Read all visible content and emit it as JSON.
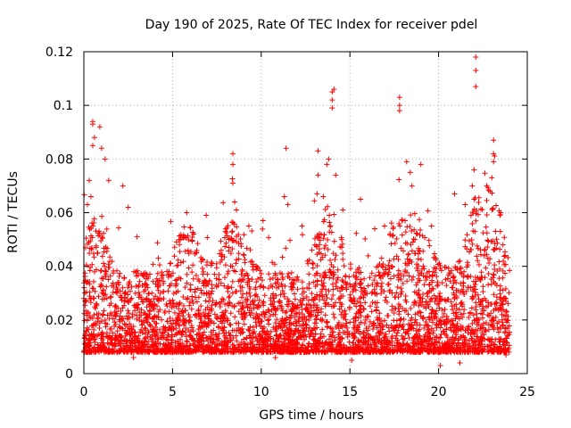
{
  "chart_data": {
    "type": "scatter",
    "title": "Day 190 of 2025, Rate Of TEC Index for receiver pdel",
    "xlabel": "GPS time / hours",
    "ylabel": "ROTI / TECUs",
    "xlim": [
      0,
      25
    ],
    "ylim": [
      0,
      0.12
    ],
    "x_ticks": [
      0,
      5,
      10,
      15,
      20,
      25
    ],
    "x_tick_labels": [
      "0",
      "5",
      "10",
      "15",
      "20",
      "25"
    ],
    "y_ticks": [
      0,
      0.02,
      0.04,
      0.06,
      0.08,
      0.1,
      0.12
    ],
    "y_tick_labels": [
      "0",
      "0.02",
      "0.04",
      "0.06",
      "0.08",
      "0.1",
      "0.12"
    ],
    "grid": true,
    "marker": "plus",
    "color": "#ff0000",
    "series": [
      {
        "points": [
          [
            0.2,
            0.063
          ],
          [
            0.3,
            0.072
          ],
          [
            0.5,
            0.093
          ],
          [
            0.5,
            0.094
          ],
          [
            0.5,
            0.085
          ],
          [
            0.6,
            0.088
          ],
          [
            0.9,
            0.092
          ],
          [
            1.0,
            0.084
          ],
          [
            1.2,
            0.08
          ],
          [
            0.4,
            0.066
          ],
          [
            1.4,
            0.072
          ],
          [
            2.2,
            0.07
          ],
          [
            2.5,
            0.062
          ],
          [
            8.4,
            0.082
          ],
          [
            8.4,
            0.078
          ],
          [
            8.4,
            0.071
          ],
          [
            8.5,
            0.064
          ],
          [
            8.6,
            0.061
          ],
          [
            11.4,
            0.084
          ],
          [
            11.3,
            0.066
          ],
          [
            11.5,
            0.063
          ],
          [
            13.2,
            0.083
          ],
          [
            13.2,
            0.074
          ],
          [
            13.5,
            0.066
          ],
          [
            13.7,
            0.078
          ],
          [
            14.0,
            0.105
          ],
          [
            14.1,
            0.106
          ],
          [
            14.0,
            0.102
          ],
          [
            14.0,
            0.099
          ],
          [
            13.8,
            0.08
          ],
          [
            14.2,
            0.074
          ],
          [
            15.6,
            0.065
          ],
          [
            17.8,
            0.103
          ],
          [
            17.8,
            0.1
          ],
          [
            17.8,
            0.098
          ],
          [
            18.2,
            0.079
          ],
          [
            18.4,
            0.075
          ],
          [
            18.5,
            0.07
          ],
          [
            19.0,
            0.078
          ],
          [
            20.9,
            0.067
          ],
          [
            22.1,
            0.118
          ],
          [
            22.1,
            0.113
          ],
          [
            22.1,
            0.107
          ],
          [
            22.0,
            0.076
          ],
          [
            21.9,
            0.07
          ],
          [
            22.0,
            0.065
          ],
          [
            23.1,
            0.087
          ],
          [
            23.1,
            0.082
          ],
          [
            23.1,
            0.079
          ],
          [
            23.0,
            0.073
          ],
          [
            22.9,
            0.068
          ],
          [
            23.5,
            0.06
          ],
          [
            3.0,
            0.051
          ],
          [
            4.2,
            0.043
          ],
          [
            5.8,
            0.06
          ],
          [
            6.9,
            0.059
          ],
          [
            9.3,
            0.055
          ],
          [
            10.1,
            0.057
          ],
          [
            12.3,
            0.055
          ],
          [
            14.6,
            0.061
          ],
          [
            16.4,
            0.054
          ],
          [
            19.6,
            0.055
          ],
          [
            21.5,
            0.063
          ],
          [
            20.1,
            0.003
          ],
          [
            21.2,
            0.004
          ],
          [
            10.8,
            0.006
          ],
          [
            15.1,
            0.005
          ],
          [
            2.8,
            0.006
          ],
          [
            23.8,
            0.007
          ]
        ]
      }
    ]
  }
}
